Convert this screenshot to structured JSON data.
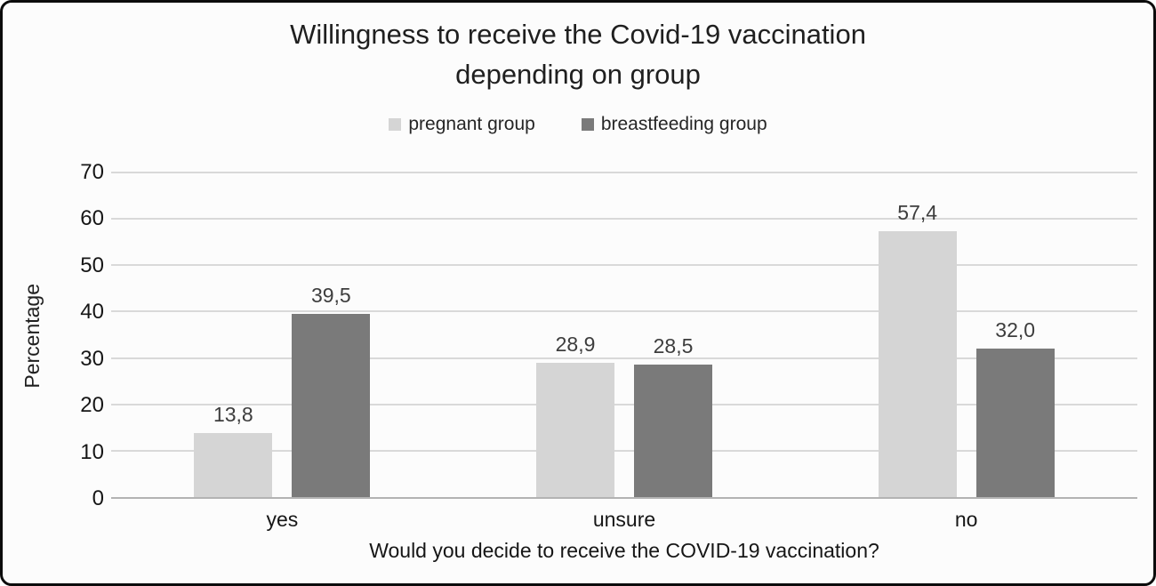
{
  "figure": {
    "title_lines": [
      "Willingness to receive the Covid-19 vaccination",
      "depending on group"
    ]
  },
  "chart_data": {
    "type": "bar",
    "title": "Willingness to receive the Covid-19 vaccination depending on group",
    "categories": [
      "yes",
      "unsure",
      "no"
    ],
    "series": [
      {
        "name": "pregnant group",
        "color": "#d5d5d5",
        "values": [
          13.8,
          28.9,
          57.4
        ],
        "labels": [
          "13,8",
          "28,9",
          "57,4"
        ]
      },
      {
        "name": "breastfeeding group",
        "color": "#7a7a7a",
        "values": [
          39.5,
          28.5,
          32.0
        ],
        "labels": [
          "39,5",
          "28,5",
          "32,0"
        ]
      }
    ],
    "xlabel": "Would you decide to receive the COVID-19 vaccination?",
    "ylabel": "Percentage",
    "ylim": [
      0,
      70
    ],
    "yticks": [
      0,
      10,
      20,
      30,
      40,
      50,
      60,
      70
    ],
    "grid": true,
    "legend_position": "top",
    "decimal_separator": ",",
    "colors": {
      "gridline": "#d9d9d9",
      "axis_line": "#b3b3b3",
      "text": "#1a1a1a"
    }
  }
}
